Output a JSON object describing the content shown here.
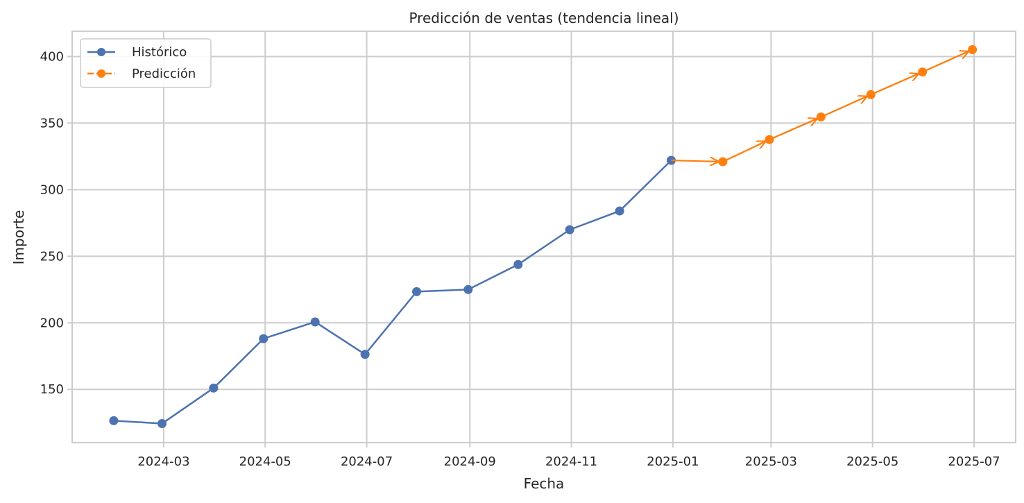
{
  "chart_data": {
    "type": "line",
    "title": "Predicción de ventas (tendencia lineal)",
    "xlabel": "Fecha",
    "ylabel": "Importe",
    "x_ticks": [
      "2024-03-01",
      "2024-05-01",
      "2024-07-01",
      "2024-09-01",
      "2024-11-01",
      "2025-01-01",
      "2025-03-01",
      "2025-05-01",
      "2025-07-01"
    ],
    "x_tick_labels": [
      "2024-03",
      "2024-05",
      "2024-07",
      "2024-09",
      "2024-11",
      "2025-01",
      "2025-03",
      "2025-05",
      "2025-07"
    ],
    "y_ticks": [
      150,
      200,
      250,
      300,
      350,
      400
    ],
    "y_tick_labels": [
      "150",
      "200",
      "250",
      "300",
      "350",
      "400"
    ],
    "xlim": [
      "2024-01-06",
      "2025-07-26"
    ],
    "ylim": [
      110,
      419
    ],
    "grid": true,
    "legend_position": "top-left",
    "series": [
      {
        "name": "Histórico",
        "color": "#4c72b0",
        "line_style": "solid",
        "marker": "circle",
        "points": [
          {
            "x": "2024-01-31",
            "y": 126.5
          },
          {
            "x": "2024-02-29",
            "y": 124.3
          },
          {
            "x": "2024-03-31",
            "y": 151.0
          },
          {
            "x": "2024-04-30",
            "y": 188.1
          },
          {
            "x": "2024-05-31",
            "y": 200.7
          },
          {
            "x": "2024-06-30",
            "y": 176.3
          },
          {
            "x": "2024-07-31",
            "y": 223.4
          },
          {
            "x": "2024-08-31",
            "y": 225.0
          },
          {
            "x": "2024-09-30",
            "y": 243.8
          },
          {
            "x": "2024-10-31",
            "y": 269.9
          },
          {
            "x": "2024-11-30",
            "y": 284.0
          },
          {
            "x": "2024-12-31",
            "y": 322.0
          }
        ]
      },
      {
        "name": "Predicción",
        "color": "#ff7f0e",
        "line_style": "dashed",
        "marker": "circle",
        "points": [
          {
            "x": "2025-01-31",
            "y": 321.0
          },
          {
            "x": "2025-02-28",
            "y": 337.6
          },
          {
            "x": "2025-03-31",
            "y": 354.6
          },
          {
            "x": "2025-04-30",
            "y": 371.4
          },
          {
            "x": "2025-05-31",
            "y": 388.4
          },
          {
            "x": "2025-06-30",
            "y": 405.2
          }
        ]
      }
    ]
  }
}
